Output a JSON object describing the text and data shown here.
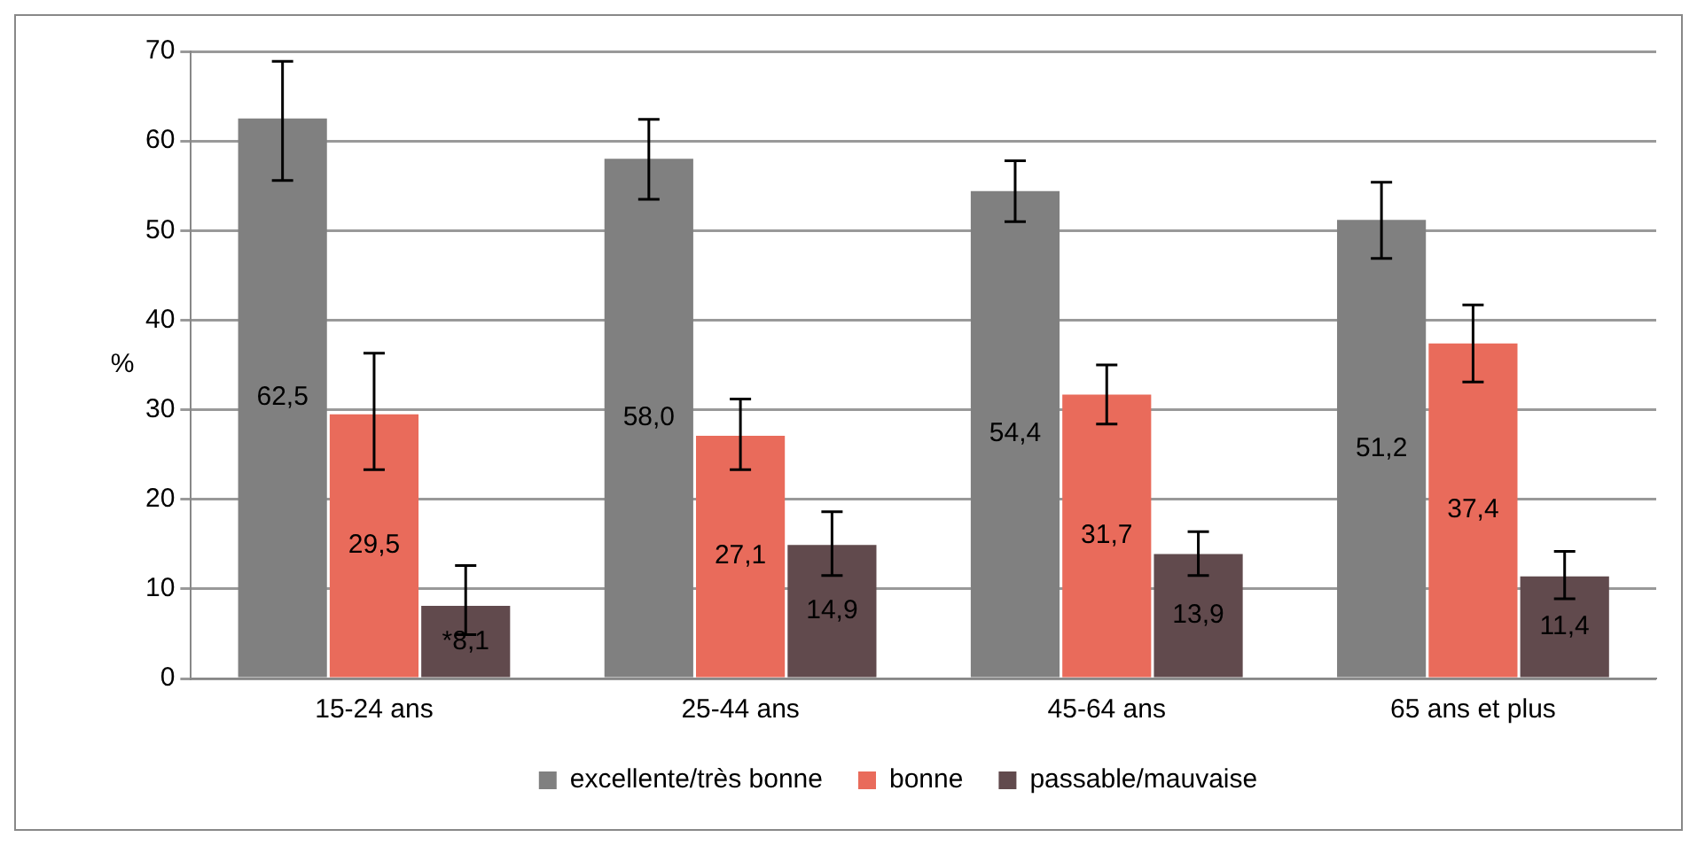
{
  "chart_data": {
    "type": "bar",
    "ylabel": "%",
    "categories": [
      "15-24 ans",
      "25-44 ans",
      "45-64 ans",
      "65 ans et plus"
    ],
    "series": [
      {
        "name": "excellente/très bonne",
        "color": "#808080",
        "values": [
          62.5,
          58.0,
          54.4,
          51.2
        ],
        "value_labels": [
          "62,5",
          "58,0",
          "54,4",
          "51,2"
        ],
        "errors": [
          [
            55.6,
            68.9
          ],
          [
            53.5,
            62.4
          ],
          [
            51.0,
            57.8
          ],
          [
            46.9,
            55.4
          ]
        ]
      },
      {
        "name": "bonne",
        "color": "#e96b5b",
        "values": [
          29.5,
          27.1,
          31.7,
          37.4
        ],
        "value_labels": [
          "29,5",
          "27,1",
          "31,7",
          "37,4"
        ],
        "errors": [
          [
            23.3,
            36.3
          ],
          [
            23.3,
            31.2
          ],
          [
            28.4,
            35.0
          ],
          [
            33.1,
            41.7
          ]
        ]
      },
      {
        "name": "passable/mauvaise",
        "color": "#614a4d",
        "values": [
          8.1,
          14.9,
          13.9,
          11.4
        ],
        "value_labels": [
          "*8,1",
          "14,9",
          "13,9",
          "11,4"
        ],
        "errors": [
          [
            4.9,
            12.6
          ],
          [
            11.5,
            18.6
          ],
          [
            11.5,
            16.4
          ],
          [
            8.9,
            14.2
          ]
        ]
      }
    ],
    "ylim": [
      0,
      70
    ],
    "yticks": [
      0,
      10,
      20,
      30,
      40,
      50,
      60,
      70
    ],
    "grid": "y",
    "legend": "bottom"
  }
}
